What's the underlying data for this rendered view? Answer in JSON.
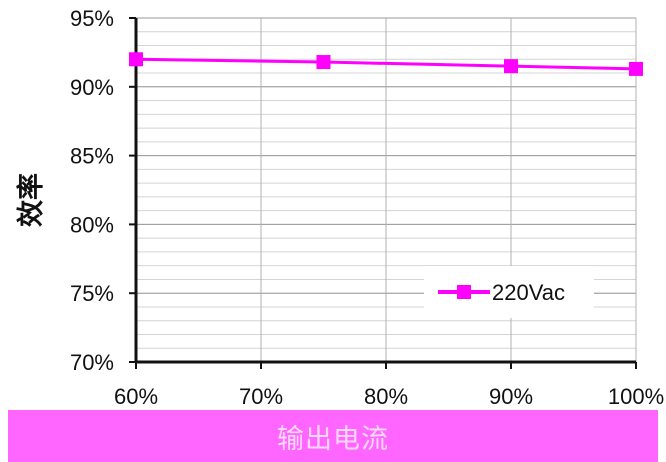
{
  "chart_data": {
    "type": "line",
    "title": "",
    "xlabel": "输出电流",
    "ylabel": "效率",
    "x": [
      0.6,
      0.75,
      0.9,
      1.0
    ],
    "xlim": [
      0.6,
      1.0
    ],
    "ylim": [
      0.7,
      0.95
    ],
    "xticks": [
      "60%",
      "70%",
      "80%",
      "90%",
      "100%"
    ],
    "yticks": [
      "70%",
      "75%",
      "80%",
      "85%",
      "90%",
      "95%"
    ],
    "series": [
      {
        "name": "220Vac",
        "values": [
          0.92,
          0.918,
          0.915,
          0.913
        ]
      }
    ],
    "grid": true,
    "legend": "bottom-right",
    "colors": {
      "series": "#ff00ff",
      "caption_band": "#ff66ff"
    }
  }
}
